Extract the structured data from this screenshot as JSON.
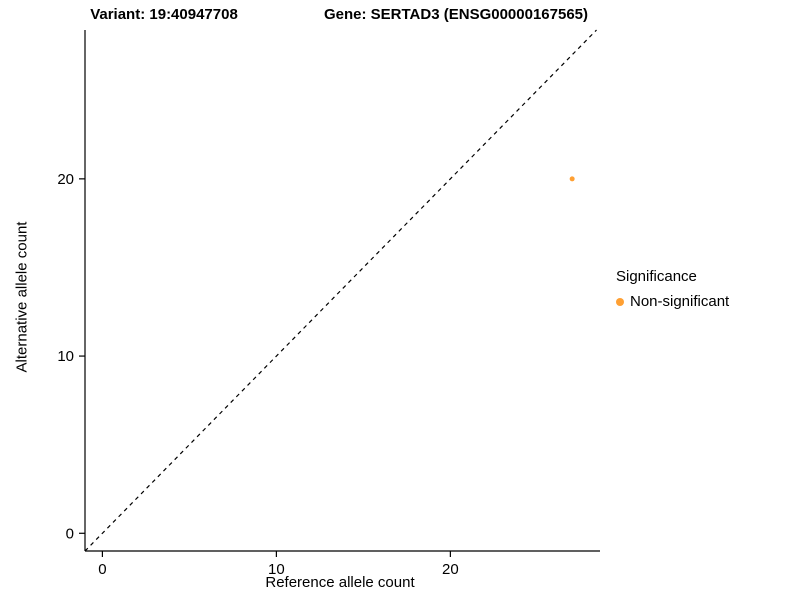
{
  "titles": {
    "variant": "Variant: 19:40947708",
    "gene": "Gene: SERTAD3 (ENSG00000167565)"
  },
  "legend": {
    "title": "Significance",
    "items": [
      {
        "label": "Non-significant",
        "color": "#FFA033"
      }
    ]
  },
  "chart_data": {
    "type": "scatter",
    "title": "Variant: 19:40947708 — Gene: SERTAD3 (ENSG00000167565)",
    "xlabel": "Reference allele count",
    "ylabel": "Alternative allele count",
    "xlim": [
      -1,
      28.6
    ],
    "ylim": [
      -1,
      28.4
    ],
    "xticks": [
      0,
      10,
      20
    ],
    "yticks": [
      0,
      10,
      20
    ],
    "grid": false,
    "legend_position": "right",
    "identity_line": {
      "style": "dashed",
      "color": "#000000",
      "slope": 1,
      "intercept": 0
    },
    "series": [
      {
        "name": "Non-significant",
        "color": "#FFA033",
        "points": [
          [
            27,
            20
          ]
        ]
      }
    ]
  }
}
